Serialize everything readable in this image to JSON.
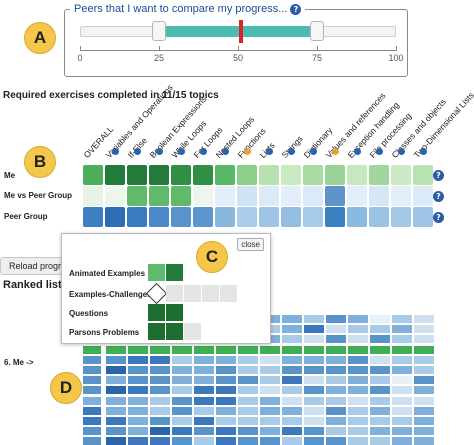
{
  "badges": {
    "a": "A",
    "b": "B",
    "c": "C",
    "d": "D"
  },
  "slider": {
    "title": "Peers that I want to compare my progress...",
    "help": "?",
    "min": 0,
    "max": 100,
    "lower": 25,
    "upper": 75,
    "marker": 51,
    "ticks": [
      "0",
      "25",
      "50",
      "75",
      "100"
    ],
    "range_color": "#4cbcb0",
    "marker_color": "#d62728"
  },
  "grid": {
    "title": "Required exercises completed in 11/15 topics",
    "columns": [
      "OVERALL",
      "Variables and Operations",
      "If-Else",
      "Boolean Expressions",
      "While Loops",
      "For Loops",
      "Nested Loops",
      "Functions",
      "Lists",
      "Strings",
      "Dictionary",
      "Values and references",
      "Exception handling",
      "File processing",
      "Classes and objects",
      "Two-Dimensional Lists"
    ],
    "column_dots": [
      "none",
      "blue",
      "blue",
      "blue",
      "blue",
      "blue",
      "blue",
      "orange",
      "blue",
      "blue",
      "blue",
      "orange",
      "blue",
      "blue",
      "blue",
      "blue"
    ],
    "rows": [
      {
        "label": "Me",
        "help": "?",
        "colors": [
          "#4cae5a",
          "#247a3b",
          "#247a3b",
          "#247a3b",
          "#2f8f45",
          "#2f8f45",
          "#58b865",
          "#8ccf8a",
          "#b7e2b0",
          "#c9e9c2",
          "#a7dba2",
          "#9ad396",
          "#c5e8bf",
          "#a0d69b",
          "#cdeac6",
          "#b9e2b3"
        ]
      },
      {
        "label": "Me vs Peer Group",
        "help": "?",
        "colors": [
          "#e8f3e6",
          "#eef6ec",
          "#5fba6a",
          "#5fba6a",
          "#5fba6a",
          "#eef6ec",
          "#e3eef8",
          "#cfe3f2",
          "#dbeaf6",
          "#e3eef8",
          "#dbeaf6",
          "#5d95c9",
          "#e3eef8",
          "#d6e7f4",
          "#e3eef8",
          "#dbeaf6"
        ]
      },
      {
        "label": "Peer Group",
        "help": "?",
        "colors": [
          "#3e7fc1",
          "#2e6db4",
          "#3b7bbf",
          "#4a88c7",
          "#5893cc",
          "#5b96ce",
          "#89b8df",
          "#aacdeb",
          "#9ec5e6",
          "#94bfe3",
          "#a6cbe9",
          "#3e7fc1",
          "#8bbae0",
          "#9bc3e6",
          "#a4c9e8",
          "#9dc4e6"
        ]
      }
    ]
  },
  "reload_button": "Reload progres",
  "ranked_title": "Ranked list of",
  "me_label": "6. Me ->",
  "popup": {
    "close": "close",
    "rows": [
      {
        "label": "Animated Examples",
        "colors": [
          "#5fba6a",
          "#247a3b"
        ]
      },
      {
        "label": "Examples-Challenges",
        "colors": [
          "#ffffff",
          "#e4e4e4",
          "#e4e4e4",
          "#e4e4e4",
          "#e4e4e4"
        ]
      },
      {
        "label": "Questions",
        "colors": [
          "#1d6e31",
          "#1d6e31"
        ]
      },
      {
        "label": "Parsons Problems",
        "colors": [
          "#1d6e31",
          "#1d6e31",
          "#e4e4e4"
        ]
      }
    ]
  },
  "heatmap": {
    "rows": 13,
    "cols": 15,
    "me_row": 3,
    "palette": [
      "#e8f0f8",
      "#cfe1f1",
      "#aacbe7",
      "#7fb0db",
      "#5894ca",
      "#3c78bb",
      "#2a64ab"
    ],
    "me_color": "#3fae55"
  }
}
